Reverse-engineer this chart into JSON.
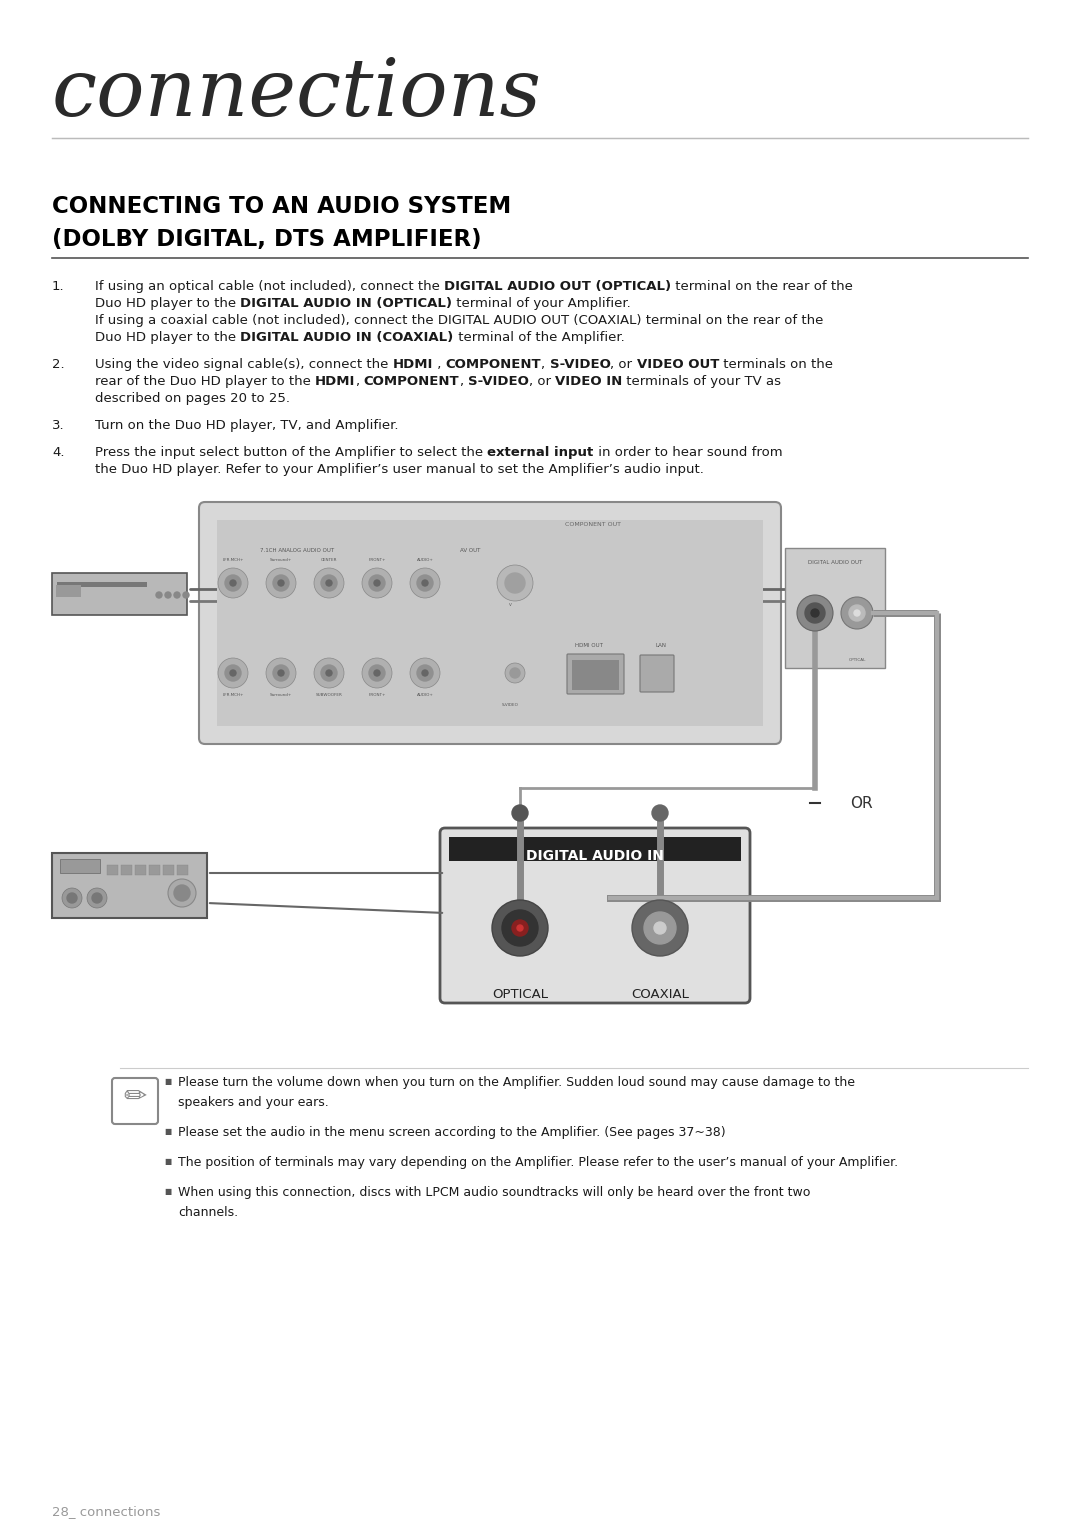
{
  "bg_color": "#ffffff",
  "header_title": "connections",
  "page_footer": "28_ connections",
  "footer_color": "#999999",
  "body_color": "#1a1a1a",
  "gray_line_color": "#bbbbbb",
  "section_title_color": "#000000",
  "diagram_bg": "#e0e0e0",
  "diagram_border": "#888888",
  "note_bullets": [
    "Please turn the volume down when you turn on the Amplifier. Sudden loud sound may cause damage to the\nspeakers and your ears.",
    "Please set the audio in the menu screen according to the Amplifier. (See pages 37~38)",
    "The position of terminals may vary depending on the Amplifier. Please refer to the user’s manual of your Amplifier.",
    "When using this connection, discs with LPCM audio soundtracks will only be heard over the front two\nchannels."
  ]
}
